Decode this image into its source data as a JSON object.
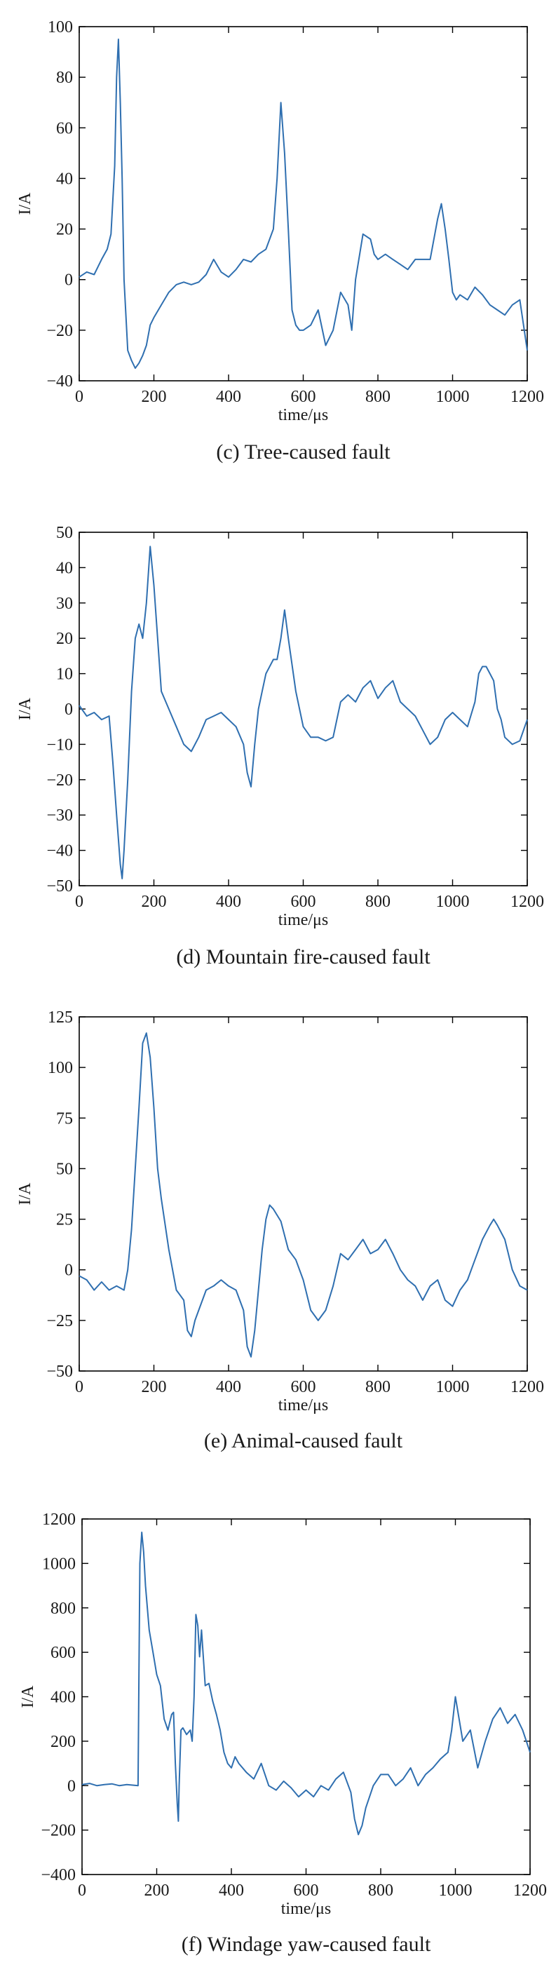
{
  "chart_data": [
    {
      "type": "line",
      "title": "(c) Tree-caused fault",
      "xlabel": "time/μs",
      "ylabel": "I/A",
      "xlim": [
        0,
        1200
      ],
      "ylim": [
        -40,
        100
      ],
      "xticks": [
        0,
        200,
        400,
        600,
        800,
        1000,
        1200
      ],
      "yticks": [
        -40,
        -20,
        0,
        20,
        40,
        60,
        80,
        100
      ],
      "grid": false,
      "series": [
        {
          "color": "#2f6fb0",
          "x": [
            0,
            20,
            40,
            60,
            75,
            85,
            95,
            100,
            105,
            110,
            115,
            120,
            130,
            140,
            150,
            160,
            170,
            180,
            190,
            200,
            220,
            240,
            260,
            280,
            300,
            320,
            340,
            360,
            380,
            400,
            420,
            440,
            460,
            480,
            500,
            520,
            530,
            540,
            550,
            560,
            570,
            580,
            590,
            600,
            620,
            640,
            660,
            680,
            700,
            720,
            730,
            740,
            760,
            780,
            790,
            800,
            820,
            840,
            860,
            880,
            900,
            920,
            940,
            960,
            970,
            980,
            990,
            1000,
            1010,
            1020,
            1040,
            1060,
            1080,
            1100,
            1120,
            1140,
            1160,
            1180,
            1200
          ],
          "y": [
            1,
            3,
            2,
            8,
            12,
            18,
            45,
            80,
            95,
            70,
            40,
            0,
            -28,
            -32,
            -35,
            -33,
            -30,
            -26,
            -18,
            -15,
            -10,
            -5,
            -2,
            -1,
            -2,
            -1,
            2,
            8,
            3,
            1,
            4,
            8,
            7,
            10,
            12,
            20,
            40,
            70,
            50,
            20,
            -12,
            -18,
            -20,
            -20,
            -18,
            -12,
            -26,
            -20,
            -5,
            -10,
            -20,
            0,
            18,
            16,
            10,
            8,
            10,
            8,
            6,
            4,
            8,
            8,
            8,
            24,
            30,
            20,
            8,
            -5,
            -8,
            -6,
            -8,
            -3,
            -6,
            -10,
            -12,
            -14,
            -10,
            -8,
            -28
          ]
        }
      ]
    },
    {
      "type": "line",
      "title": "(d) Mountain fire-caused fault",
      "xlabel": "time/μs",
      "ylabel": "I/A",
      "xlim": [
        0,
        1200
      ],
      "ylim": [
        -50,
        50
      ],
      "xticks": [
        0,
        200,
        400,
        600,
        800,
        1000,
        1200
      ],
      "yticks": [
        -50,
        -40,
        -30,
        -20,
        -10,
        0,
        10,
        20,
        30,
        40,
        50
      ],
      "grid": false,
      "series": [
        {
          "color": "#2f6fb0",
          "x": [
            0,
            20,
            40,
            60,
            80,
            90,
            100,
            110,
            115,
            120,
            130,
            140,
            150,
            160,
            170,
            180,
            190,
            200,
            210,
            220,
            240,
            260,
            280,
            300,
            320,
            340,
            360,
            380,
            400,
            420,
            440,
            450,
            460,
            470,
            480,
            490,
            500,
            520,
            530,
            540,
            550,
            560,
            580,
            600,
            620,
            640,
            660,
            680,
            700,
            720,
            740,
            760,
            780,
            800,
            820,
            840,
            860,
            880,
            900,
            920,
            940,
            960,
            980,
            1000,
            1020,
            1040,
            1060,
            1070,
            1080,
            1090,
            1100,
            1110,
            1120,
            1130,
            1140,
            1160,
            1180,
            1200
          ],
          "y": [
            1,
            -2,
            -1,
            -3,
            -2,
            -15,
            -30,
            -44,
            -48,
            -40,
            -20,
            5,
            20,
            24,
            20,
            30,
            46,
            35,
            20,
            5,
            0,
            -5,
            -10,
            -12,
            -8,
            -3,
            -2,
            -1,
            -3,
            -5,
            -10,
            -18,
            -22,
            -10,
            0,
            5,
            10,
            14,
            14,
            20,
            28,
            20,
            5,
            -5,
            -8,
            -8,
            -9,
            -8,
            2,
            4,
            2,
            6,
            8,
            3,
            6,
            8,
            2,
            0,
            -2,
            -6,
            -10,
            -8,
            -3,
            -1,
            -3,
            -5,
            2,
            10,
            12,
            12,
            10,
            8,
            0,
            -3,
            -8,
            -10,
            -9,
            -3
          ]
        }
      ]
    },
    {
      "type": "line",
      "title": "(e) Animal-caused fault",
      "xlabel": "time/μs",
      "ylabel": "I/A",
      "xlim": [
        0,
        1200
      ],
      "ylim": [
        -50,
        125
      ],
      "xticks": [
        0,
        200,
        400,
        600,
        800,
        1000,
        1200
      ],
      "yticks": [
        -50,
        -25,
        0,
        25,
        50,
        75,
        100,
        125
      ],
      "grid": false,
      "series": [
        {
          "color": "#2f6fb0",
          "x": [
            0,
            20,
            40,
            60,
            80,
            100,
            120,
            130,
            140,
            150,
            160,
            170,
            180,
            190,
            200,
            210,
            220,
            240,
            260,
            280,
            290,
            300,
            310,
            320,
            340,
            360,
            380,
            400,
            420,
            440,
            450,
            460,
            470,
            480,
            490,
            500,
            510,
            520,
            540,
            560,
            580,
            600,
            620,
            640,
            660,
            680,
            700,
            720,
            740,
            760,
            780,
            800,
            820,
            840,
            860,
            880,
            900,
            920,
            940,
            960,
            980,
            1000,
            1020,
            1040,
            1060,
            1080,
            1100,
            1110,
            1120,
            1140,
            1160,
            1180,
            1200
          ],
          "y": [
            -3,
            -5,
            -10,
            -6,
            -10,
            -8,
            -10,
            0,
            20,
            50,
            80,
            112,
            117,
            105,
            80,
            50,
            35,
            10,
            -10,
            -15,
            -30,
            -33,
            -25,
            -20,
            -10,
            -8,
            -5,
            -8,
            -10,
            -20,
            -38,
            -43,
            -30,
            -10,
            10,
            25,
            32,
            30,
            24,
            10,
            5,
            -5,
            -20,
            -25,
            -20,
            -8,
            8,
            5,
            10,
            15,
            8,
            10,
            15,
            8,
            0,
            -5,
            -8,
            -15,
            -8,
            -5,
            -15,
            -18,
            -10,
            -5,
            5,
            15,
            22,
            25,
            22,
            15,
            0,
            -8,
            -10
          ]
        }
      ]
    },
    {
      "type": "line",
      "title": "(f) Windage yaw-caused fault",
      "xlabel": "time/μs",
      "ylabel": "I/A",
      "xlim": [
        0,
        1200
      ],
      "ylim": [
        -400,
        1200
      ],
      "xticks": [
        0,
        200,
        400,
        600,
        800,
        1000,
        1200
      ],
      "yticks": [
        -400,
        -200,
        0,
        200,
        400,
        600,
        800,
        1000,
        1200
      ],
      "grid": false,
      "series": [
        {
          "color": "#2f6fb0",
          "x": [
            0,
            20,
            40,
            60,
            80,
            100,
            120,
            150,
            152,
            155,
            160,
            165,
            170,
            180,
            190,
            200,
            210,
            220,
            230,
            240,
            245,
            250,
            255,
            258,
            260,
            265,
            270,
            280,
            290,
            295,
            300,
            305,
            310,
            315,
            320,
            330,
            340,
            350,
            360,
            370,
            380,
            390,
            400,
            410,
            420,
            440,
            460,
            480,
            500,
            520,
            540,
            560,
            580,
            600,
            620,
            640,
            660,
            680,
            700,
            720,
            730,
            740,
            750,
            760,
            780,
            800,
            820,
            840,
            860,
            880,
            900,
            920,
            940,
            960,
            980,
            990,
            1000,
            1010,
            1020,
            1040,
            1060,
            1080,
            1100,
            1120,
            1140,
            1160,
            1180,
            1200
          ],
          "y": [
            5,
            10,
            0,
            5,
            8,
            0,
            5,
            0,
            400,
            1000,
            1140,
            1050,
            900,
            700,
            600,
            500,
            450,
            300,
            250,
            320,
            330,
            100,
            -80,
            -160,
            0,
            250,
            260,
            230,
            250,
            200,
            400,
            770,
            720,
            580,
            700,
            450,
            460,
            380,
            320,
            250,
            150,
            100,
            80,
            130,
            100,
            60,
            30,
            100,
            0,
            -20,
            20,
            -10,
            -50,
            -20,
            -50,
            0,
            -20,
            30,
            60,
            -30,
            -150,
            -220,
            -180,
            -100,
            0,
            50,
            50,
            0,
            30,
            80,
            0,
            50,
            80,
            120,
            150,
            250,
            400,
            300,
            200,
            250,
            80,
            200,
            300,
            350,
            280,
            320,
            250,
            150
          ]
        }
      ]
    }
  ]
}
